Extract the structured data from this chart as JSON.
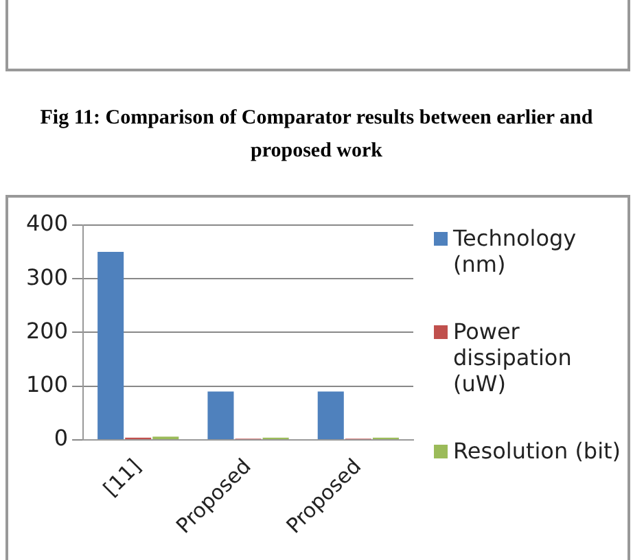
{
  "chart_data": {
    "type": "bar",
    "annotations": [
      "Fig 11: Comparison of Comparator results between earlier and proposed work"
    ],
    "categories": [
      "[11]",
      "Proposed",
      "Proposed"
    ],
    "series": [
      {
        "name": "Technology (nm)",
        "color": "#4f81bd",
        "values": [
          350,
          90,
          90
        ]
      },
      {
        "name": "Power dissipation (uW)",
        "color": "#c0504d",
        "values": [
          4,
          2,
          2
        ]
      },
      {
        "name": "Resolution (bit)",
        "color": "#9bbb59",
        "values": [
          6,
          4,
          4
        ]
      }
    ],
    "ylim": [
      0,
      400
    ],
    "yticks": [
      0,
      100,
      200,
      300,
      400
    ],
    "grid": "y",
    "legend": "right"
  }
}
